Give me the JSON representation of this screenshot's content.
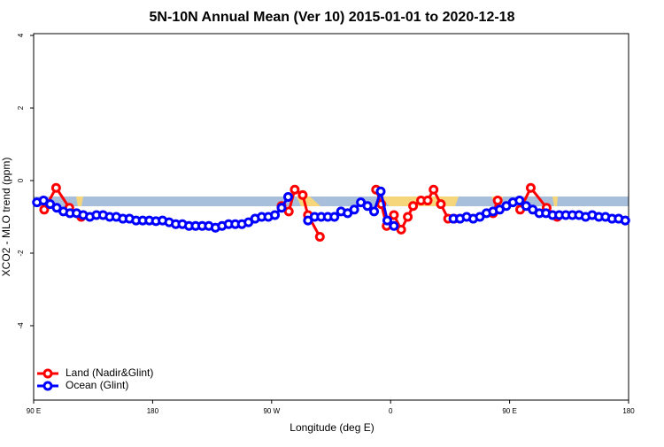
{
  "chart_data": {
    "type": "line",
    "title": "5N-10N Annual Mean (Ver 10)   2015-01-01 to 2020-12-18",
    "x_label": "Longitude (deg E)",
    "y_label": "XCO2 - MLO trend (ppm)",
    "xlim": [
      90,
      540
    ],
    "ylim": [
      -6.05,
      4.05
    ],
    "xticks": [
      {
        "value": 90,
        "label": "90 E"
      },
      180,
      {
        "value": 270,
        "label": "90 W"
      },
      {
        "value": 360,
        "label": "0"
      },
      {
        "value": 450,
        "label": "90 E"
      },
      {
        "value": 540,
        "label": "180"
      }
    ],
    "yticks": [
      -4,
      -2,
      0,
      2,
      4
    ],
    "legend": "bottom-left",
    "series": [
      {
        "name": "Land (Nadir&Glint)",
        "color": "#ff0000",
        "x": [
          98,
          107,
          117,
          126,
          null,
          277.5,
          283,
          287.5,
          293.5,
          297.5,
          306.5,
          null,
          349,
          353,
          357,
          362.5,
          368,
          373,
          377,
          383,
          388,
          392.5,
          398,
          403.5,
          408,
          null,
          437.5,
          441,
          null,
          458,
          466,
          478,
          486
        ],
        "values": [
          -0.8,
          -0.2,
          -0.75,
          -1.0,
          null,
          -0.7,
          -0.85,
          -0.25,
          -0.4,
          -0.95,
          -1.55,
          null,
          -0.25,
          -0.65,
          -1.25,
          -0.95,
          -1.35,
          -1.0,
          -0.7,
          -0.55,
          -0.55,
          -0.25,
          -0.65,
          -1.05,
          -1.05,
          null,
          -0.9,
          -0.55,
          null,
          -0.8,
          -0.2,
          -0.75,
          -1.0
        ]
      },
      {
        "name": "Ocean (Glint)",
        "color": "#0000ff",
        "x": [
          92.5,
          97.5,
          102.5,
          107.5,
          112.5,
          117.5,
          122.5,
          127.5,
          132.5,
          137.5,
          142.5,
          147.5,
          152.5,
          157.5,
          162.5,
          167.5,
          172.5,
          177.5,
          182.5,
          187.5,
          192.5,
          197.5,
          202.5,
          207.5,
          212.5,
          217.5,
          222.5,
          227.5,
          232.5,
          237.5,
          242.5,
          247.5,
          252.5,
          257.5,
          262.5,
          267.5,
          272.5,
          277.5,
          282.5,
          287.5,
          292.5,
          297.5,
          302.5,
          307.5,
          312.5,
          317.5,
          322.5,
          327.5,
          332.5,
          337.5,
          342.5,
          347.5,
          352.5,
          357.5,
          362.5,
          367.5,
          372.5,
          377.5,
          382.5,
          387.5,
          392.5,
          397.5,
          402.5,
          407.5,
          412.5,
          417.5,
          422.5,
          427.5,
          432.5,
          437.5,
          442.5,
          447.5,
          452.5,
          457.5,
          462.5,
          467.5,
          472.5,
          477.5,
          482.5,
          487.5,
          492.5,
          497.5,
          502.5,
          507.5,
          512.5,
          517.5,
          522.5,
          527.5,
          532.5,
          537.5
        ],
        "values": [
          -0.6,
          -0.55,
          -0.65,
          -0.75,
          -0.85,
          -0.9,
          -0.9,
          -0.95,
          -1.0,
          -0.95,
          -0.95,
          -1.0,
          -1.0,
          -1.05,
          -1.05,
          -1.1,
          -1.1,
          -1.1,
          -1.12,
          -1.1,
          -1.15,
          -1.2,
          -1.2,
          -1.25,
          -1.25,
          -1.25,
          -1.25,
          -1.3,
          -1.25,
          -1.2,
          -1.2,
          -1.2,
          -1.15,
          -1.05,
          -1.0,
          -1.0,
          -0.95,
          -0.75,
          -0.45,
          null,
          null,
          -1.1,
          -1.0,
          -1.0,
          -1.0,
          -1.0,
          -0.85,
          -0.9,
          -0.8,
          -0.6,
          -0.7,
          -0.85,
          -0.3,
          -1.1,
          -1.25,
          null,
          null,
          null,
          null,
          null,
          null,
          null,
          null,
          -1.05,
          -1.05,
          -1.0,
          -1.05,
          -1.0,
          -0.9,
          -0.85,
          -0.8,
          -0.7,
          -0.6,
          -0.55,
          -0.7,
          -0.8,
          -0.9,
          -0.9,
          -0.95,
          -0.95,
          -0.95,
          -0.95,
          -0.95,
          -1.0,
          -0.95,
          -1.0,
          -1.0,
          -1.05,
          -1.05,
          -1.1
        ]
      }
    ]
  }
}
